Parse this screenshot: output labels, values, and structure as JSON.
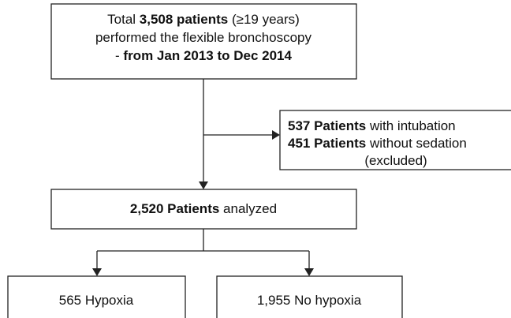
{
  "nodes": [
    {
      "lines": [
        [
          {
            "text": "Total ",
            "bold": false
          },
          {
            "text": "3,508 patients",
            "bold": true
          },
          {
            "text": " (≥19 years)",
            "bold": false
          }
        ],
        [
          {
            "text": "performed the flexible bronchoscopy",
            "bold": false
          }
        ],
        [
          {
            "text": "- ",
            "bold": false
          },
          {
            "text": "from Jan 2013 to Dec 2014",
            "bold": true
          }
        ]
      ]
    },
    {
      "lines": [
        [
          {
            "text": "537 Patients",
            "bold": true
          },
          {
            "text": " with intubation",
            "bold": false
          }
        ],
        [
          {
            "text": "451 Patients",
            "bold": true
          },
          {
            "text": " without sedation",
            "bold": false
          }
        ],
        [
          {
            "text": "(excluded)",
            "bold": false
          }
        ]
      ]
    },
    {
      "lines": [
        [
          {
            "text": "2,520 Patients",
            "bold": true
          },
          {
            "text": " analyzed",
            "bold": false
          }
        ]
      ]
    },
    {
      "lines": [
        [
          {
            "text": "565 Hypoxia",
            "bold": false
          }
        ]
      ]
    },
    {
      "lines": [
        [
          {
            "text": "1,955 No hypoxia",
            "bold": false
          }
        ]
      ]
    }
  ]
}
